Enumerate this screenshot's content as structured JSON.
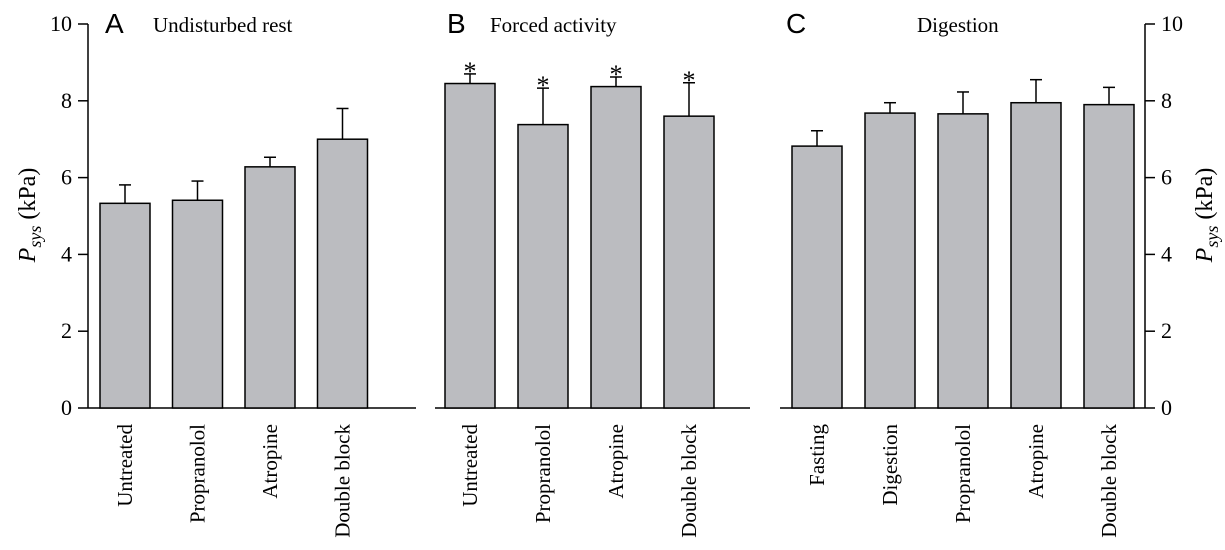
{
  "figure": {
    "y_axis_title": {
      "main": "P",
      "sub": "sys",
      "unit": " (kPa)"
    },
    "colors": {
      "bar_fill": "#bbbcc0",
      "stroke": "#000000"
    }
  },
  "chart_data": [
    {
      "type": "bar",
      "panel": "A",
      "title": "Undisturbed rest",
      "categories": [
        "Untreated",
        "Propranolol",
        "Atropine",
        "Double block"
      ],
      "values": [
        5.33,
        5.41,
        6.28,
        7.0
      ],
      "error_upper": [
        0.48,
        0.5,
        0.25,
        0.8
      ],
      "significant": [
        false,
        false,
        false,
        false
      ],
      "ylabel": "P_sys (kPa)",
      "ylim": [
        0,
        10
      ],
      "yticks": [
        0,
        2,
        4,
        6,
        8,
        10
      ],
      "axis_side": "left"
    },
    {
      "type": "bar",
      "panel": "B",
      "title": "Forced activity",
      "categories": [
        "Untreated",
        "Propranolol",
        "Atropine",
        "Double block"
      ],
      "values": [
        8.45,
        7.38,
        8.37,
        7.6
      ],
      "error_upper": [
        0.25,
        0.95,
        0.25,
        0.87
      ],
      "significant": [
        true,
        true,
        true,
        true
      ],
      "significance_symbol": "*",
      "ylim": [
        0,
        10
      ],
      "axis_side": "none"
    },
    {
      "type": "bar",
      "panel": "C",
      "title": "Digestion",
      "categories": [
        "Fasting",
        "Digestion",
        "Propranolol",
        "Atropine",
        "Double block"
      ],
      "values": [
        6.82,
        7.68,
        7.66,
        7.95,
        7.9
      ],
      "error_upper": [
        0.4,
        0.27,
        0.57,
        0.6,
        0.45
      ],
      "significant": [
        false,
        false,
        false,
        false,
        false
      ],
      "ylabel": "P_sys (kPa)",
      "ylim": [
        0,
        10
      ],
      "yticks": [
        0,
        2,
        4,
        6,
        8,
        10
      ],
      "axis_side": "right"
    }
  ]
}
